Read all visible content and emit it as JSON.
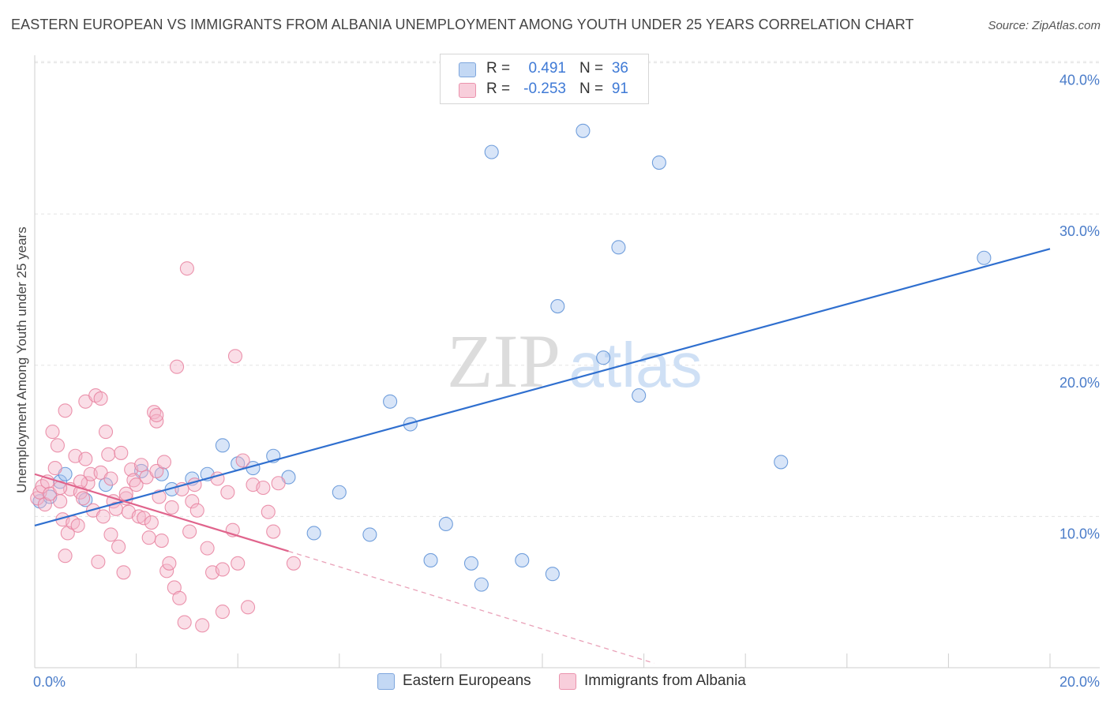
{
  "title": "EASTERN EUROPEAN VS IMMIGRANTS FROM ALBANIA UNEMPLOYMENT AMONG YOUTH UNDER 25 YEARS CORRELATION CHART",
  "source": "Source: ZipAtlas.com",
  "watermark": {
    "zip": "ZIP",
    "atlas": "atlas"
  },
  "legend": {
    "rows": [
      {
        "r_label": "R =",
        "r_value": "0.491",
        "n_label": "N =",
        "n_value": "36",
        "color": "#a8c6ef"
      },
      {
        "r_label": "R =",
        "r_value": "-0.253",
        "n_label": "N =",
        "n_value": "91",
        "color": "#f5b6c9"
      }
    ]
  },
  "bottom_legend": [
    {
      "label": "Eastern Europeans",
      "color": "#a8c6ef"
    },
    {
      "label": "Immigrants from Albania",
      "color": "#f5b6c9"
    }
  ],
  "chart_data": {
    "type": "scatter",
    "title": "EASTERN EUROPEAN VS IMMIGRANTS FROM ALBANIA UNEMPLOYMENT AMONG YOUTH UNDER 25 YEARS CORRELATION CHART",
    "xlabel": "",
    "ylabel": "Unemployment Among Youth under 25 years",
    "xlim": [
      0,
      20
    ],
    "ylim": [
      0,
      40.5
    ],
    "x_tick_labels": [
      "0.0%",
      "20.0%"
    ],
    "y_ticks": [
      10,
      20,
      30,
      40
    ],
    "y_tick_labels": [
      "10.0%",
      "20.0%",
      "30.0%",
      "40.0%"
    ],
    "grid": true,
    "legend_position": "top-center",
    "series": [
      {
        "name": "Eastern Europeans",
        "color": "#5b8fd6",
        "fill": "#a8c6ef",
        "trend": {
          "x": [
            0,
            20
          ],
          "y": [
            9.4,
            27.7
          ]
        },
        "points": [
          [
            0.1,
            11.0
          ],
          [
            0.3,
            11.3
          ],
          [
            0.5,
            12.3
          ],
          [
            0.6,
            12.8
          ],
          [
            1.0,
            11.1
          ],
          [
            1.4,
            12.1
          ],
          [
            2.1,
            13.0
          ],
          [
            2.5,
            12.8
          ],
          [
            2.7,
            11.8
          ],
          [
            3.1,
            12.5
          ],
          [
            3.4,
            12.8
          ],
          [
            3.7,
            14.7
          ],
          [
            4.0,
            13.5
          ],
          [
            4.3,
            13.2
          ],
          [
            4.7,
            14.0
          ],
          [
            5.0,
            12.6
          ],
          [
            5.5,
            8.9
          ],
          [
            6.0,
            11.6
          ],
          [
            6.6,
            8.8
          ],
          [
            7.0,
            17.6
          ],
          [
            7.4,
            16.1
          ],
          [
            7.8,
            7.1
          ],
          [
            8.1,
            9.5
          ],
          [
            8.6,
            6.9
          ],
          [
            8.8,
            5.5
          ],
          [
            9.0,
            34.1
          ],
          [
            9.6,
            7.1
          ],
          [
            10.2,
            6.2
          ],
          [
            10.3,
            23.9
          ],
          [
            10.8,
            35.5
          ],
          [
            11.2,
            20.5
          ],
          [
            11.5,
            27.8
          ],
          [
            11.9,
            18.0
          ],
          [
            12.3,
            33.4
          ],
          [
            14.7,
            13.6
          ],
          [
            18.7,
            27.1
          ]
        ]
      },
      {
        "name": "Immigrants from Albania",
        "color": "#e8819f",
        "fill": "#f5b6c9",
        "trend": {
          "x": [
            0,
            5.0
          ],
          "y": [
            12.8,
            7.7
          ]
        },
        "trend_dashed": {
          "x": [
            5.0,
            12.2
          ],
          "y": [
            7.7,
            0.3
          ]
        },
        "points": [
          [
            0.05,
            11.2
          ],
          [
            0.1,
            11.6
          ],
          [
            0.15,
            12.0
          ],
          [
            0.2,
            10.8
          ],
          [
            0.25,
            12.3
          ],
          [
            0.3,
            11.5
          ],
          [
            0.35,
            15.6
          ],
          [
            0.4,
            13.2
          ],
          [
            0.45,
            14.7
          ],
          [
            0.5,
            11.0
          ],
          [
            0.55,
            9.8
          ],
          [
            0.6,
            7.4
          ],
          [
            0.6,
            17.0
          ],
          [
            0.65,
            8.9
          ],
          [
            0.7,
            11.8
          ],
          [
            0.75,
            9.6
          ],
          [
            0.8,
            14.0
          ],
          [
            0.85,
            9.4
          ],
          [
            0.9,
            11.6
          ],
          [
            0.95,
            11.2
          ],
          [
            1.0,
            17.6
          ],
          [
            1.0,
            13.8
          ],
          [
            1.05,
            12.2
          ],
          [
            1.1,
            12.8
          ],
          [
            1.15,
            10.4
          ],
          [
            1.2,
            18.0
          ],
          [
            1.25,
            7.0
          ],
          [
            1.3,
            17.8
          ],
          [
            1.3,
            12.9
          ],
          [
            1.35,
            10.0
          ],
          [
            1.4,
            15.6
          ],
          [
            1.45,
            14.1
          ],
          [
            1.5,
            12.5
          ],
          [
            1.5,
            8.8
          ],
          [
            1.55,
            11.0
          ],
          [
            1.6,
            10.5
          ],
          [
            1.65,
            8.0
          ],
          [
            1.7,
            14.2
          ],
          [
            1.75,
            6.3
          ],
          [
            1.8,
            11.2
          ],
          [
            1.85,
            10.3
          ],
          [
            1.9,
            13.1
          ],
          [
            1.95,
            12.4
          ],
          [
            2.0,
            12.1
          ],
          [
            2.05,
            10.0
          ],
          [
            2.1,
            13.4
          ],
          [
            2.15,
            9.9
          ],
          [
            2.2,
            12.6
          ],
          [
            2.25,
            8.6
          ],
          [
            2.3,
            9.6
          ],
          [
            2.35,
            16.9
          ],
          [
            2.4,
            16.3
          ],
          [
            2.4,
            13.0
          ],
          [
            2.45,
            11.3
          ],
          [
            2.5,
            8.4
          ],
          [
            2.55,
            13.6
          ],
          [
            2.6,
            6.4
          ],
          [
            2.65,
            6.9
          ],
          [
            2.7,
            10.6
          ],
          [
            2.75,
            5.3
          ],
          [
            2.8,
            19.9
          ],
          [
            2.85,
            4.6
          ],
          [
            2.9,
            11.8
          ],
          [
            2.95,
            3.0
          ],
          [
            3.0,
            26.4
          ],
          [
            3.05,
            9.0
          ],
          [
            3.1,
            11.0
          ],
          [
            3.15,
            12.1
          ],
          [
            3.2,
            10.4
          ],
          [
            3.3,
            2.8
          ],
          [
            3.4,
            7.9
          ],
          [
            3.5,
            6.3
          ],
          [
            3.6,
            12.5
          ],
          [
            3.7,
            3.7
          ],
          [
            3.8,
            11.6
          ],
          [
            3.9,
            9.1
          ],
          [
            3.95,
            20.6
          ],
          [
            4.0,
            6.9
          ],
          [
            4.1,
            13.7
          ],
          [
            4.2,
            4.0
          ],
          [
            4.3,
            12.1
          ],
          [
            4.5,
            11.9
          ],
          [
            4.6,
            10.3
          ],
          [
            4.7,
            9.0
          ],
          [
            4.8,
            12.2
          ],
          [
            5.1,
            6.9
          ],
          [
            2.4,
            16.7
          ],
          [
            1.8,
            11.5
          ],
          [
            0.9,
            12.3
          ],
          [
            3.7,
            6.5
          ],
          [
            0.5,
            11.9
          ]
        ]
      }
    ]
  }
}
